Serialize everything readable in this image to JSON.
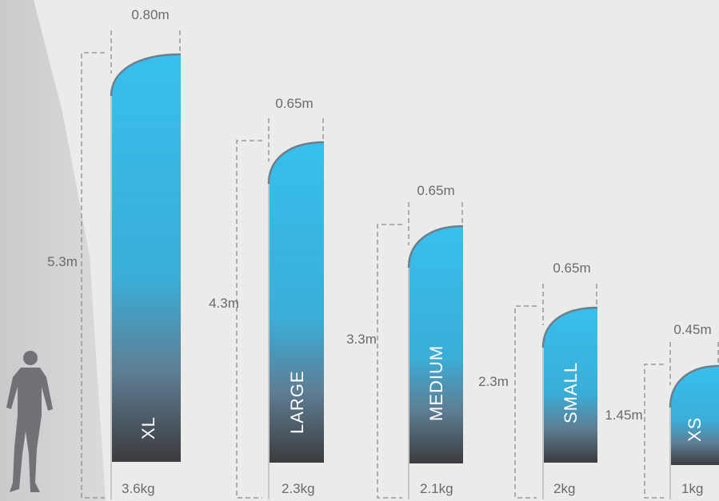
{
  "colors": {
    "background": "#ebebe9",
    "wall_shadow": "#cfd1d3",
    "flag_top": "#38bfee",
    "flag_mid": "#3aaed8",
    "flag_bottom": "#3c3c3e",
    "guide_line": "#8a8a8a",
    "silhouette": "#707275"
  },
  "icons": {
    "person": "person-silhouette-icon"
  },
  "flags": [
    {
      "size": "XL",
      "height": "5.3m",
      "width": "0.80m",
      "weight": "3.6kg"
    },
    {
      "size": "LARGE",
      "height": "4.3m",
      "width": "0.65m",
      "weight": "2.3kg"
    },
    {
      "size": "MEDIUM",
      "height": "3.3m",
      "width": "0.65m",
      "weight": "2.1kg"
    },
    {
      "size": "SMALL",
      "height": "2.3m",
      "width": "0.65m",
      "weight": "2kg"
    },
    {
      "size": "XS",
      "height": "1.45m",
      "width": "0.45m",
      "weight": "1kg"
    }
  ]
}
